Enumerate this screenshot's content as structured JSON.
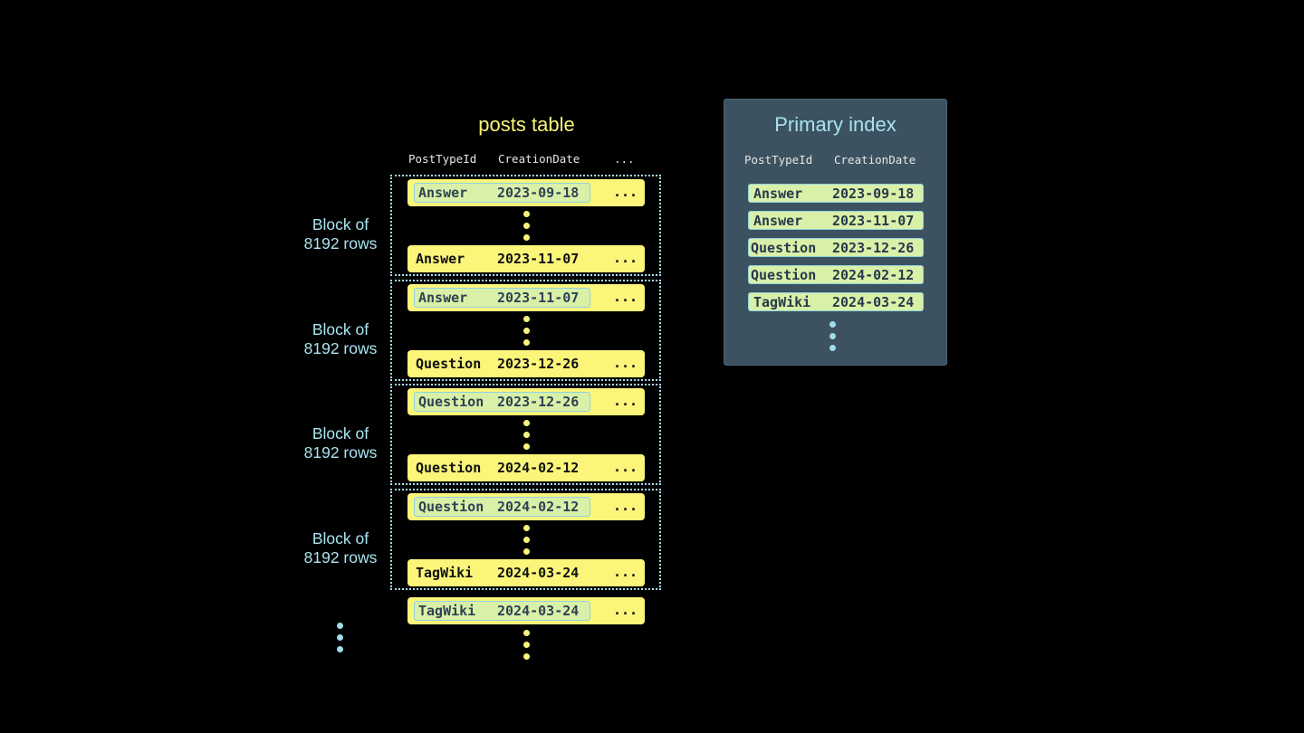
{
  "posts_table": {
    "title": "posts table",
    "headers": [
      "PostTypeId",
      "CreationDate",
      "..."
    ],
    "block_label": "Block of\n8192 rows",
    "blocks": [
      {
        "first": {
          "type": "Answer",
          "date": "2023-09-18",
          "more": "..."
        },
        "last": {
          "type": "Answer",
          "date": "2023-11-07",
          "more": "..."
        }
      },
      {
        "first": {
          "type": "Answer",
          "date": "2023-11-07",
          "more": "..."
        },
        "last": {
          "type": "Question",
          "date": "2023-12-26",
          "more": "..."
        }
      },
      {
        "first": {
          "type": "Question",
          "date": "2023-12-26",
          "more": "..."
        },
        "last": {
          "type": "Question",
          "date": "2024-02-12",
          "more": "..."
        }
      },
      {
        "first": {
          "type": "Question",
          "date": "2024-02-12",
          "more": "..."
        },
        "last": {
          "type": "TagWiki",
          "date": "2024-03-24",
          "more": "..."
        }
      }
    ],
    "trailing_row": {
      "type": "TagWiki",
      "date": "2024-03-24",
      "more": "..."
    }
  },
  "primary_index": {
    "title": "Primary index",
    "headers": [
      "PostTypeId",
      "CreationDate"
    ],
    "entries": [
      {
        "type": "Answer",
        "date": "2023-09-18"
      },
      {
        "type": "Answer",
        "date": "2023-11-07"
      },
      {
        "type": "Question",
        "date": "2023-12-26"
      },
      {
        "type": "Question",
        "date": "2024-02-12"
      },
      {
        "type": "TagWiki",
        "date": "2024-03-24"
      }
    ]
  },
  "colors": {
    "row": "#fbf57a",
    "highlight": "#d9f0a8",
    "label": "#a8e4f0",
    "panel": "#3d5260",
    "title": "#fbf57a"
  }
}
